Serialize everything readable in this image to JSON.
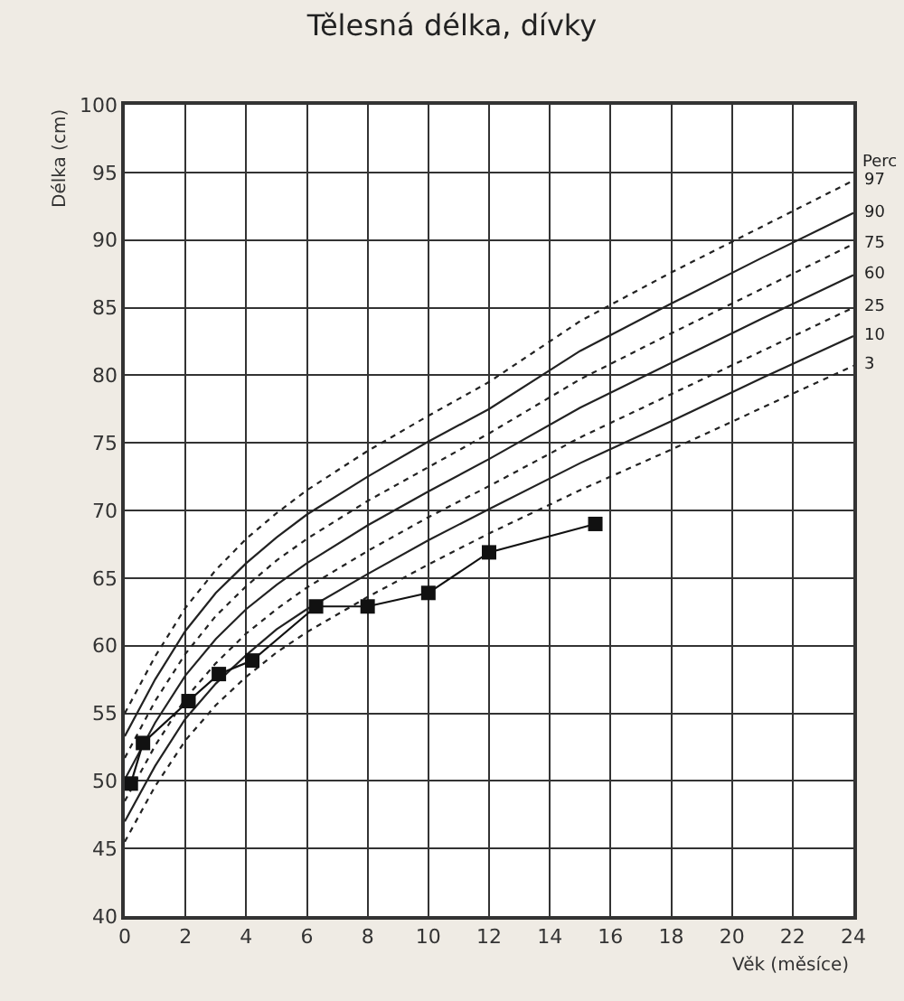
{
  "chart_data": {
    "type": "line",
    "title": "Tělesná délka, dívky",
    "xlabel": "Věk (měsíce)",
    "ylabel": "Délka (cm)",
    "legend_title": "Perc",
    "xlim": [
      0,
      24
    ],
    "xticks": [
      0,
      2,
      4,
      6,
      8,
      10,
      12,
      14,
      16,
      18,
      20,
      22,
      24
    ],
    "ylim": [
      40,
      100
    ],
    "yticks": [
      40,
      45,
      50,
      55,
      60,
      65,
      70,
      75,
      80,
      85,
      90,
      95,
      100
    ],
    "grid": true,
    "legend": false,
    "x": [
      0,
      1,
      2,
      3,
      4,
      5,
      6,
      8,
      10,
      12,
      15,
      18,
      21,
      24
    ],
    "series": [
      {
        "name": "97",
        "color": "#222222",
        "line_style": "dotted",
        "marker": "none",
        "values": [
          55.0,
          59.2,
          62.8,
          65.6,
          67.9,
          69.8,
          71.5,
          74.4,
          77.0,
          79.5,
          84.0,
          87.6,
          91.0,
          94.4
        ]
      },
      {
        "name": "90",
        "color": "#222222",
        "line_style": "solid",
        "marker": "none",
        "values": [
          53.3,
          57.5,
          61.1,
          63.9,
          66.1,
          68.0,
          69.7,
          72.5,
          75.1,
          77.5,
          81.8,
          85.3,
          88.7,
          92.0
        ]
      },
      {
        "name": "75",
        "color": "#222222",
        "line_style": "dotted",
        "marker": "none",
        "values": [
          51.7,
          55.9,
          59.4,
          62.2,
          64.4,
          66.3,
          67.9,
          70.7,
          73.2,
          75.7,
          79.7,
          83.1,
          86.4,
          89.7
        ]
      },
      {
        "name": "60",
        "color": "#222222",
        "line_style": "solid",
        "marker": "none",
        "values": [
          50.1,
          54.3,
          57.8,
          60.5,
          62.7,
          64.5,
          66.1,
          68.9,
          71.4,
          73.8,
          77.6,
          80.9,
          84.2,
          87.4
        ]
      },
      {
        "name": "25",
        "color": "#222222",
        "line_style": "dotted",
        "marker": "none",
        "values": [
          48.5,
          52.6,
          56.1,
          58.7,
          60.9,
          62.7,
          64.3,
          67.0,
          69.5,
          71.8,
          75.4,
          78.6,
          81.8,
          85.0
        ]
      },
      {
        "name": "10",
        "color": "#222222",
        "line_style": "solid",
        "marker": "none",
        "values": [
          47.0,
          51.1,
          54.6,
          57.2,
          59.3,
          61.2,
          62.7,
          65.3,
          67.8,
          70.1,
          73.5,
          76.6,
          79.8,
          82.9
        ]
      },
      {
        "name": "3",
        "color": "#222222",
        "line_style": "dotted",
        "marker": "none",
        "values": [
          45.5,
          49.6,
          53.0,
          55.6,
          57.7,
          59.5,
          61.0,
          63.6,
          66.0,
          68.3,
          71.5,
          74.5,
          77.6,
          80.7
        ]
      },
      {
        "color": "#111111",
        "line_style": "solid",
        "marker": "square",
        "x": [
          0.2,
          0.6,
          2.1,
          3.1,
          4.2,
          6.3,
          8.0,
          10.0,
          12.0,
          15.5
        ],
        "values": [
          49.8,
          52.8,
          55.9,
          57.9,
          58.9,
          62.9,
          62.9,
          63.9,
          66.9,
          69.0
        ]
      }
    ]
  }
}
